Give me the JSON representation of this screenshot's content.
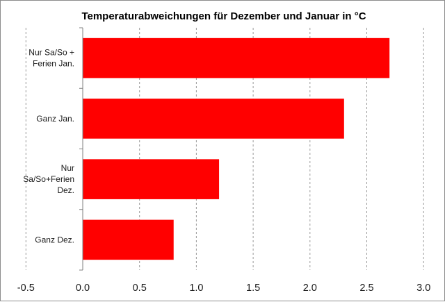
{
  "chart_data": {
    "type": "bar",
    "orientation": "horizontal",
    "title": "Temperaturabweichungen für Dezember und Januar in °C",
    "xlabel": "",
    "ylabel": "",
    "categories": [
      [
        "Nur Sa/So +",
        "Ferien Jan."
      ],
      [
        "Ganz Jan."
      ],
      [
        "Nur",
        "Sa/So+Ferien",
        "Dez."
      ],
      [
        "Ganz Dez."
      ]
    ],
    "values": [
      2.7,
      2.3,
      1.2,
      0.8
    ],
    "xlim": [
      -0.5,
      3.0
    ],
    "xticks": [
      "-0.5",
      "0.0",
      "0.5",
      "1.0",
      "1.5",
      "2.0",
      "2.5",
      "3.0"
    ],
    "grid": "vertical-dashed",
    "legend": "none",
    "bar_color": "#ff0000",
    "grid_color": "#9a9a9a",
    "axis_color": "#7f7f7f"
  }
}
